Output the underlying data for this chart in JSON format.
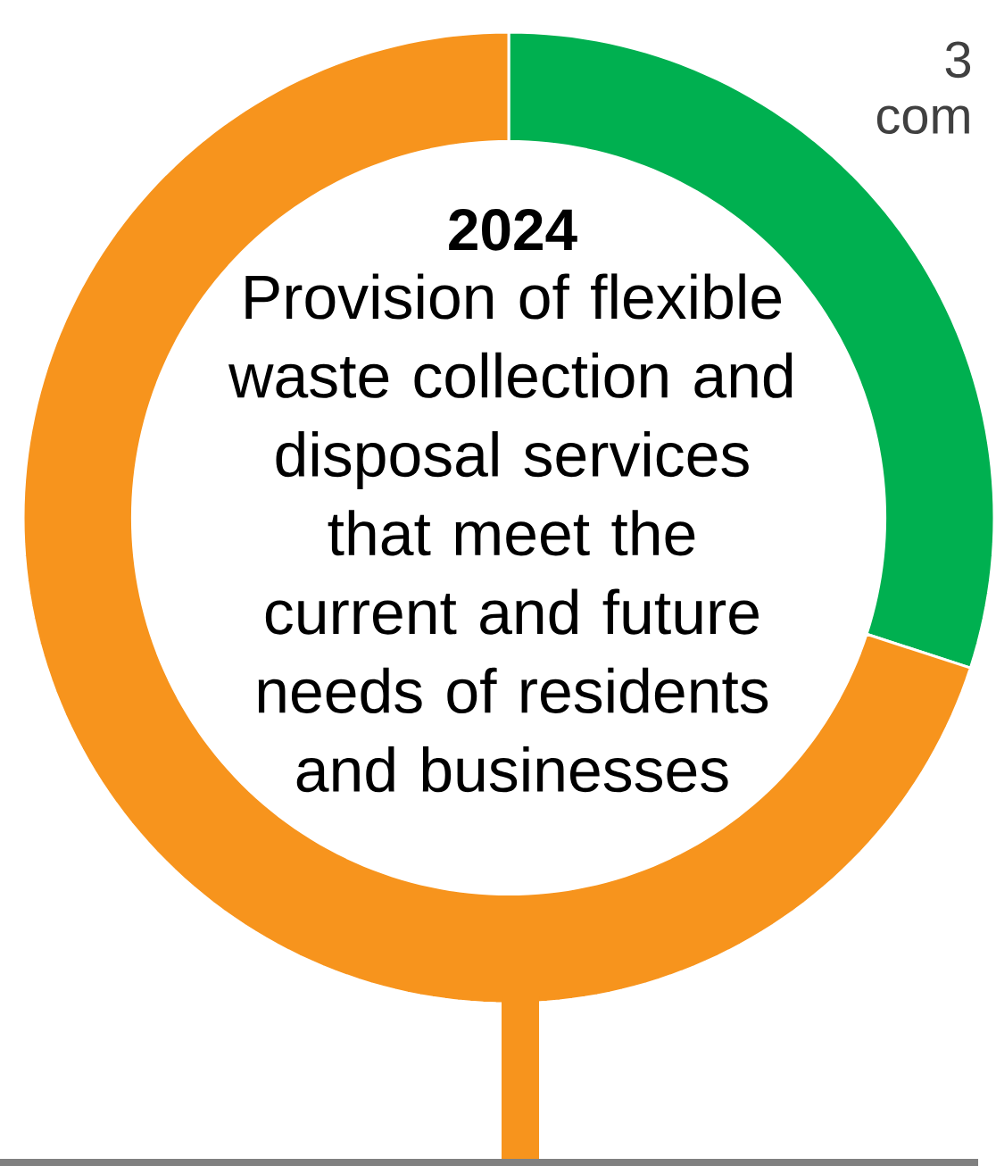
{
  "chart_data": {
    "type": "donut",
    "title": "2024",
    "subtitle": "Provision of flexible waste collection and disposal services that meet the current and future needs of residents and businesses",
    "categories": [
      null,
      null
    ],
    "values": [
      30,
      70
    ],
    "colors": [
      "#00b050",
      "#f7941d"
    ],
    "annotations": [
      "3",
      "com"
    ]
  }
}
